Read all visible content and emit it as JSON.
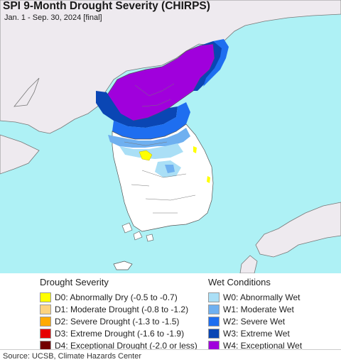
{
  "header": {
    "title": "SPI 9-Month Drought Severity (CHIRPS)",
    "subtitle": "Jan. 1 - Sep. 30, 2024 [final]"
  },
  "legend": {
    "drought": {
      "heading": "Drought Severity",
      "items": [
        {
          "code": "D0",
          "label": "D0: Abnormally Dry (-0.5 to -0.7)",
          "color": "#ffff00"
        },
        {
          "code": "D1",
          "label": "D1: Moderate Drought (-0.8 to -1.2)",
          "color": "#fcd37f"
        },
        {
          "code": "D2",
          "label": "D2: Severe Drought (-1.3 to -1.5)",
          "color": "#ffaa00"
        },
        {
          "code": "D3",
          "label": "D3: Extreme Drought (-1.6 to -1.9)",
          "color": "#e60000"
        },
        {
          "code": "D4",
          "label": "D4: Exceptional Drought (-2.0 or less)",
          "color": "#730000"
        }
      ]
    },
    "wet": {
      "heading": "Wet Conditions",
      "items": [
        {
          "code": "W0",
          "label": "W0: Abnormally Wet",
          "color": "#aadff6"
        },
        {
          "code": "W1",
          "label": "W1: Moderate Wet",
          "color": "#6fb0f0"
        },
        {
          "code": "W2",
          "label": "W2: Severe Wet",
          "color": "#1e6ef0"
        },
        {
          "code": "W3",
          "label": "W3: Extreme Wet",
          "color": "#0a46b4"
        },
        {
          "code": "W4",
          "label": "W4: Exceptional Wet",
          "color": "#a000dc"
        }
      ]
    }
  },
  "footer": {
    "source": "Source: UCSB, Climate Hazards Center"
  },
  "map_colors": {
    "ocean": "#aef1f5",
    "outside_land": "#eeeaef",
    "land": "#ffffff",
    "border": "#666666"
  }
}
